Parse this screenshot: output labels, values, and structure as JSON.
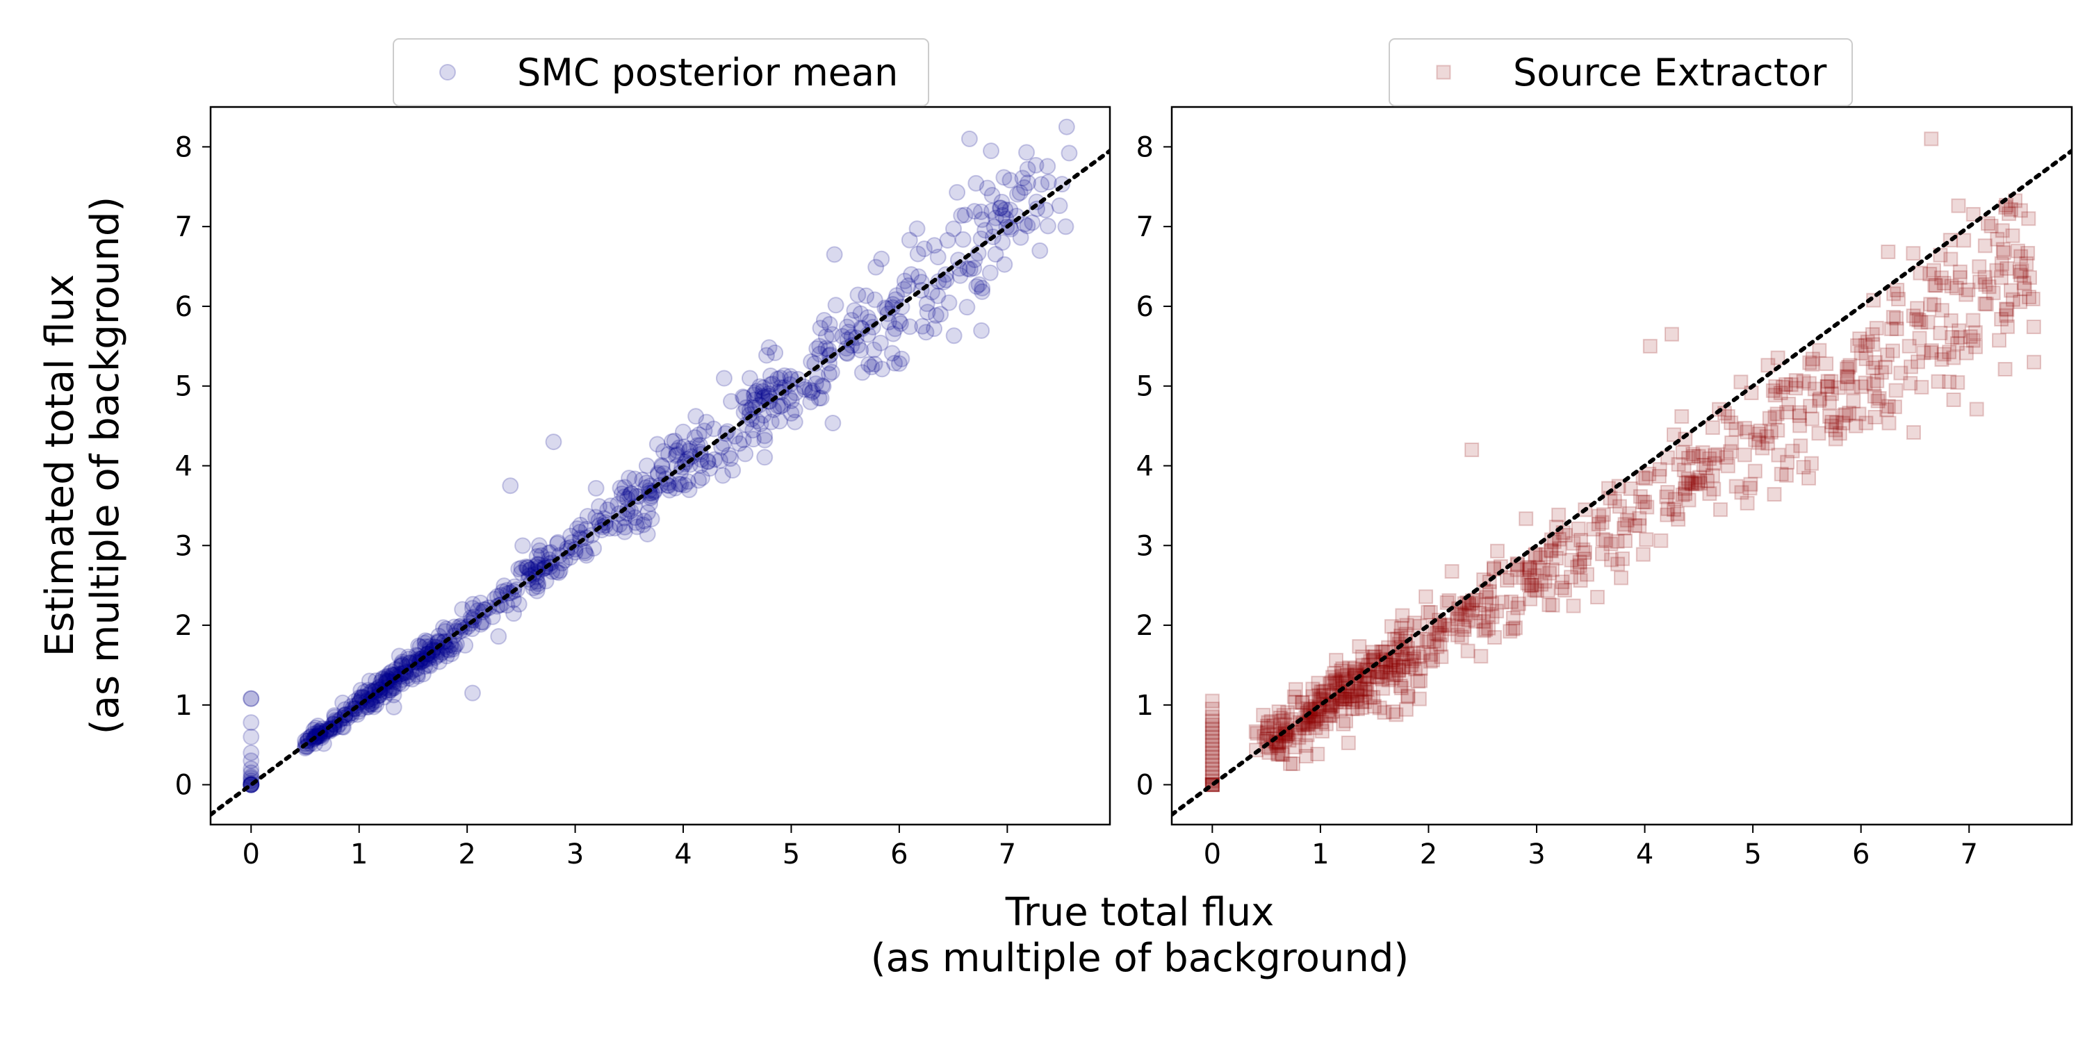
{
  "figure": {
    "ylabel_line1": "Estimated total flux",
    "ylabel_line2": "(as multiple of background)",
    "xlabel_line1": "True total flux",
    "xlabel_line2": "(as multiple of background)"
  },
  "chart_data": [
    {
      "type": "scatter",
      "legend": "SMC posterior mean",
      "legend_position": "top-center (above axes)",
      "marker": "circle",
      "color": "#00008b",
      "alpha": 0.15,
      "xlim": [
        -0.375,
        7.95
      ],
      "ylim": [
        -0.5,
        8.5
      ],
      "xticks": [
        0,
        1,
        2,
        3,
        4,
        5,
        6,
        7
      ],
      "yticks": [
        0,
        1,
        2,
        3,
        4,
        5,
        6,
        7,
        8
      ],
      "grid": false,
      "reference_line": {
        "style": "dotted",
        "color": "#000000",
        "slope": 1,
        "intercept": 0
      },
      "n_points": 760,
      "zero_flux_points_y": [
        0,
        0,
        0,
        0,
        0,
        0,
        0.02,
        0.05,
        0.08,
        0.1,
        0.15,
        0.2,
        0.3,
        0.4,
        0.6,
        0.78,
        1.08
      ],
      "spread_sd_fraction": 0.05,
      "x_range": [
        0.5,
        7.55
      ],
      "notable_points": [
        [
          7.55,
          8.25
        ],
        [
          6.65,
          8.1
        ],
        [
          6.85,
          7.95
        ],
        [
          0.0,
          1.08
        ],
        [
          2.05,
          1.15
        ],
        [
          2.8,
          4.3
        ],
        [
          2.4,
          3.75
        ],
        [
          5.4,
          6.65
        ]
      ]
    },
    {
      "type": "scatter",
      "legend": "Source Extractor",
      "legend_position": "top-center (above axes)",
      "marker": "square",
      "color": "#8b0000",
      "alpha": 0.15,
      "xlim": [
        -0.375,
        7.95
      ],
      "ylim": [
        -0.5,
        8.5
      ],
      "xticks": [
        0,
        1,
        2,
        3,
        4,
        5,
        6,
        7
      ],
      "yticks": [
        0,
        1,
        2,
        3,
        4,
        5,
        6,
        7,
        8
      ],
      "grid": false,
      "reference_line": {
        "style": "dotted",
        "color": "#000000",
        "slope": 1,
        "intercept": 0
      },
      "n_points": 760,
      "zero_flux_points_y": [
        0,
        0,
        0,
        0,
        0,
        0.05,
        0.1,
        0.15,
        0.2,
        0.25,
        0.3,
        0.35,
        0.4,
        0.45,
        0.5,
        0.55,
        0.6,
        0.65,
        0.7,
        0.75,
        0.8,
        0.85,
        0.95,
        1.05
      ],
      "trend_slope": 0.85,
      "spread_sd": 0.45,
      "x_range": [
        0.4,
        7.6
      ],
      "notable_points": [
        [
          6.65,
          8.1
        ],
        [
          4.25,
          5.65
        ],
        [
          4.05,
          5.5
        ],
        [
          2.4,
          4.2
        ],
        [
          7.6,
          5.3
        ],
        [
          7.55,
          7.1
        ],
        [
          4.7,
          3.45
        ],
        [
          6.75,
          5.95
        ]
      ]
    }
  ]
}
